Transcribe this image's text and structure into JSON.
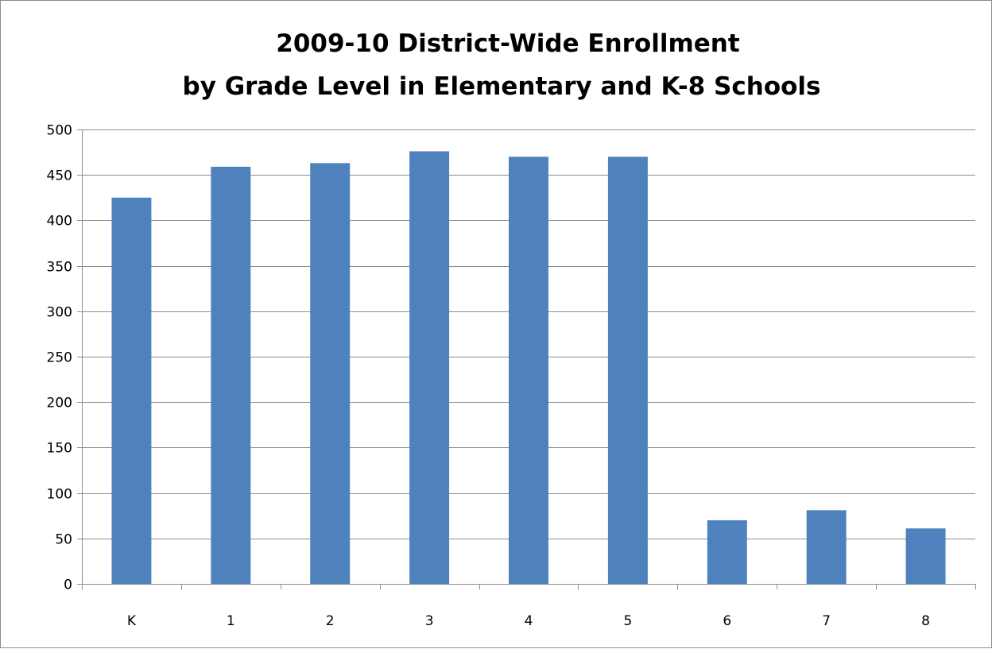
{
  "chart_data": {
    "type": "bar",
    "title_lines": [
      "2009-10 District-Wide Enrollment",
      "by Grade Level in Elementary and K-8 Schools"
    ],
    "xlabel": "",
    "ylabel": "",
    "categories": [
      "K",
      "1",
      "2",
      "3",
      "4",
      "5",
      "6",
      "7",
      "8"
    ],
    "values": [
      425,
      459,
      463,
      476,
      470,
      470,
      70,
      81,
      61
    ],
    "ylim": [
      0,
      500
    ],
    "yticks": [
      0,
      50,
      100,
      150,
      200,
      250,
      300,
      350,
      400,
      450,
      500
    ],
    "grid": true,
    "legend": "none",
    "bar_color": "#4f81bd",
    "grid_color": "#8c8c8c"
  }
}
